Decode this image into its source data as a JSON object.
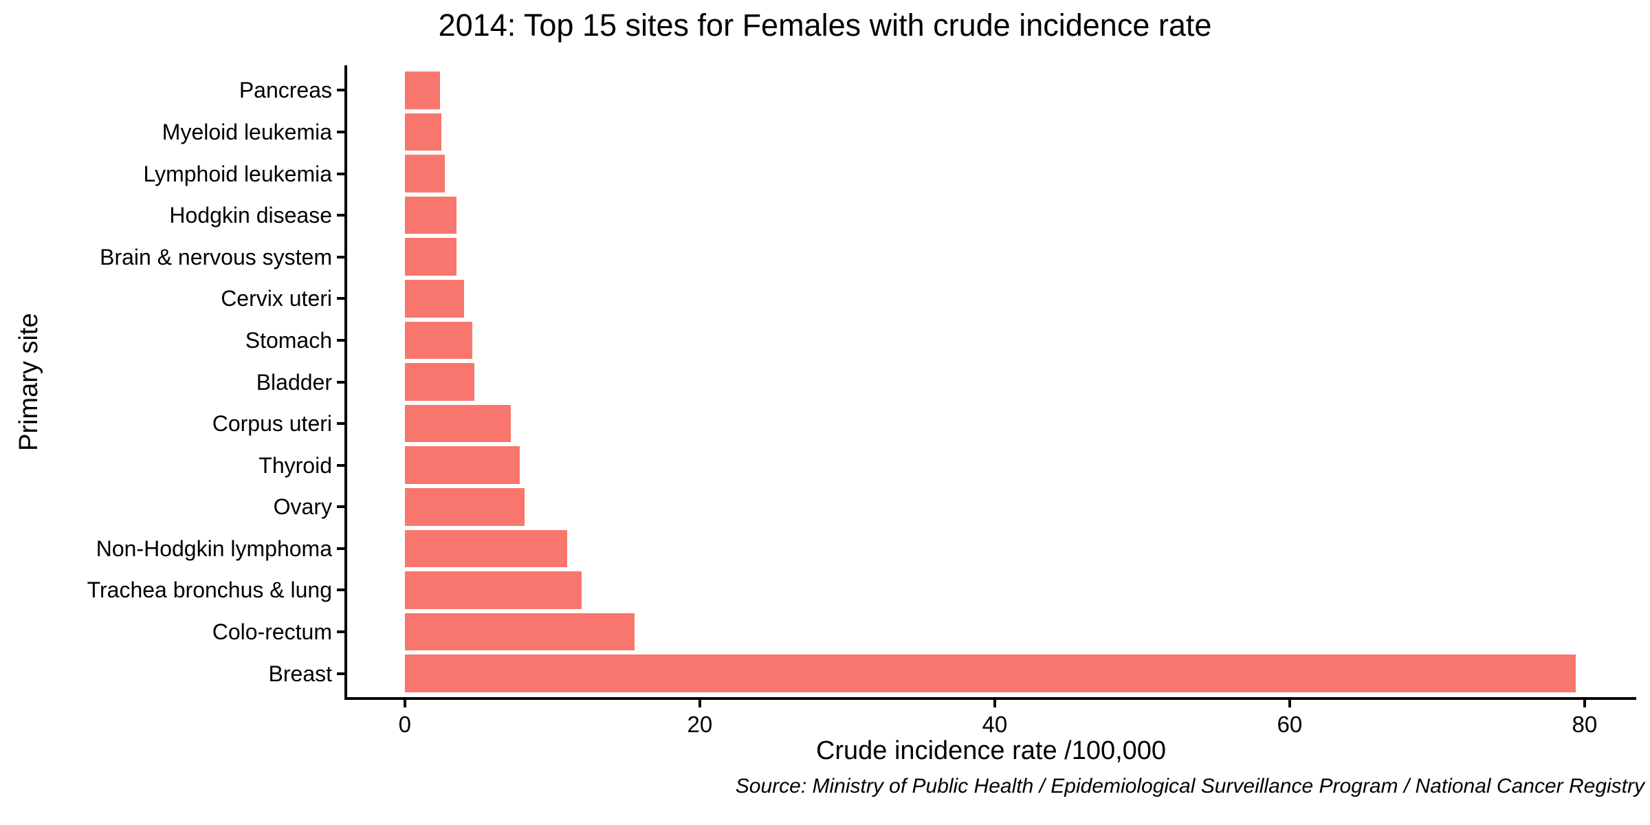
{
  "figure": {
    "title": "2014: Top 15 sites for Females with crude incidence rate",
    "source_note": "Source: Ministry of Public Health / Epidemiological Surveillance Program / National Cancer Registry"
  },
  "chart_data": {
    "type": "bar",
    "orientation": "horizontal",
    "title": "2014: Top 15 sites for Females with crude incidence rate",
    "xlabel": "Crude incidence rate /100,000",
    "ylabel": "Primary site",
    "categories": [
      "Pancreas",
      "Myeloid leukemia",
      "Lymphoid leukemia",
      "Hodgkin disease",
      "Brain & nervous system",
      "Cervix uteri",
      "Stomach",
      "Bladder",
      "Corpus uteri",
      "Thyroid",
      "Ovary",
      "Non-Hodgkin lymphoma",
      "Trachea bronchus & lung",
      "Colo-rectum",
      "Breast"
    ],
    "values": [
      2.4,
      2.5,
      2.7,
      3.5,
      3.5,
      4.0,
      4.6,
      4.7,
      7.2,
      7.8,
      8.1,
      11.0,
      12.0,
      15.6,
      79.4
    ],
    "x_ticks": [
      0,
      20,
      40,
      60,
      80
    ],
    "xlim": [
      -4,
      83.5
    ],
    "bar_color": "#F8766D",
    "axis_color": "#000000",
    "text_color": "#000000",
    "grid": "off",
    "legend": "none",
    "bar_category_gap_fraction": 0.9,
    "source": "Source: Ministry of Public Health / Epidemiological Surveillance Program / National Cancer Registry"
  }
}
